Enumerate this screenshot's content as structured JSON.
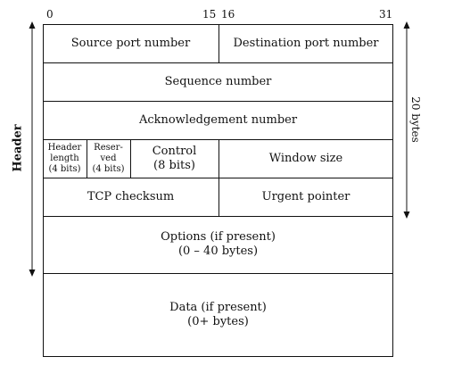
{
  "bit_numbers": {
    "b0": "0",
    "b15": "15",
    "b16": "16",
    "b31": "31"
  },
  "fields": {
    "source_port": "Source port number",
    "destination_port": "Destination port number",
    "sequence_number": "Sequence number",
    "acknowledgement_number": "Acknowledgement number",
    "header_length": [
      "Header",
      "length",
      "(4 bits)"
    ],
    "reserved": [
      "Reser-",
      "ved",
      "(4 bits)"
    ],
    "control": [
      "Control",
      "(8 bits)"
    ],
    "window_size": "Window size",
    "tcp_checksum": "TCP checksum",
    "urgent_pointer": "Urgent pointer",
    "options": [
      "Options (if present)",
      "(0 – 40 bytes)"
    ],
    "data": [
      "Data (if present)",
      "(0+ bytes)"
    ]
  },
  "labels": {
    "header": "Header",
    "size": "20 bytes"
  }
}
